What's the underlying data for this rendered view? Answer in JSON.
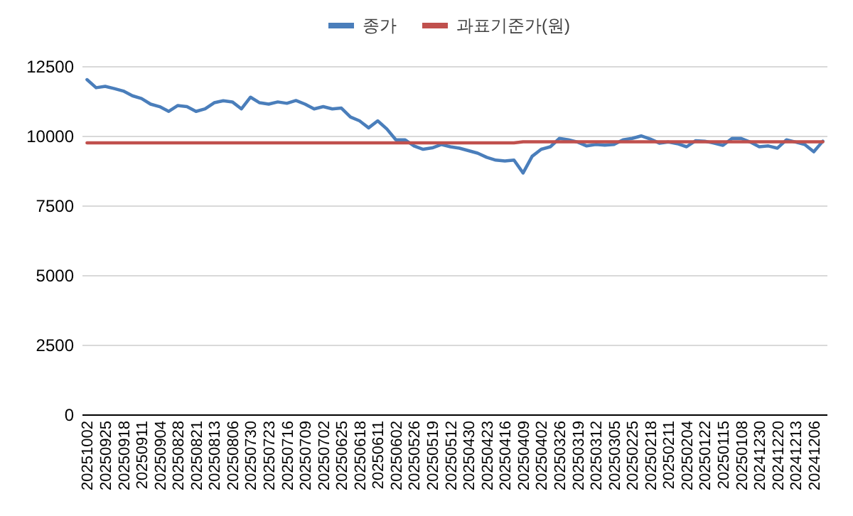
{
  "chart_data": {
    "type": "line",
    "categories": [
      "20251002",
      null,
      "20250925",
      null,
      "20250918",
      null,
      "20250911",
      null,
      "20250904",
      null,
      "20250828",
      null,
      "20250821",
      null,
      "20250813",
      null,
      "20250806",
      null,
      "20250730",
      null,
      "20250723",
      null,
      "20250716",
      null,
      "20250709",
      null,
      "20250702",
      null,
      "20250625",
      null,
      "20250618",
      null,
      "20250611",
      null,
      "20250602",
      null,
      "20250526",
      null,
      "20250519",
      null,
      "20250512",
      null,
      "20250430",
      null,
      "20250423",
      null,
      "20250416",
      null,
      "20250409",
      null,
      "20250402",
      null,
      "20250326",
      null,
      "20250319",
      null,
      "20250312",
      null,
      "20250305",
      null,
      "20250225",
      null,
      "20250218",
      null,
      "20250211",
      null,
      "20250204",
      null,
      "20250122",
      null,
      "20250115",
      null,
      "20250108",
      null,
      "20241230",
      null,
      "20241220",
      null,
      "20241213",
      null,
      "20241206",
      null
    ],
    "series": [
      {
        "name": "종가",
        "color": "#4a7ebb",
        "values": [
          12040,
          11750,
          11800,
          11720,
          11630,
          11460,
          11360,
          11160,
          11070,
          10900,
          11110,
          11070,
          10900,
          10990,
          11210,
          11280,
          11240,
          10990,
          11410,
          11210,
          11160,
          11240,
          11190,
          11290,
          11160,
          10990,
          11070,
          10990,
          11020,
          10700,
          10560,
          10310,
          10560,
          10270,
          9880,
          9880,
          9660,
          9540,
          9590,
          9710,
          9630,
          9580,
          9490,
          9400,
          9250,
          9150,
          9120,
          9150,
          8690,
          9290,
          9540,
          9630,
          9930,
          9880,
          9800,
          9660,
          9710,
          9690,
          9710,
          9880,
          9930,
          10020,
          9910,
          9760,
          9800,
          9740,
          9630,
          9850,
          9830,
          9760,
          9680,
          9930,
          9930,
          9800,
          9630,
          9660,
          9580,
          9880,
          9800,
          9710,
          9450,
          9830
        ]
      },
      {
        "name": "과표기준가(원)",
        "color": "#c0504d",
        "values": [
          9770,
          9770,
          9770,
          9770,
          9770,
          9770,
          9770,
          9770,
          9770,
          9770,
          9770,
          9770,
          9770,
          9770,
          9770,
          9770,
          9770,
          9770,
          9770,
          9770,
          9770,
          9770,
          9770,
          9770,
          9770,
          9770,
          9770,
          9770,
          9770,
          9770,
          9770,
          9770,
          9770,
          9770,
          9770,
          9770,
          9770,
          9770,
          9770,
          9770,
          9770,
          9770,
          9770,
          9770,
          9770,
          9770,
          9770,
          9770,
          9810,
          9810,
          9810,
          9810,
          9810,
          9810,
          9810,
          9810,
          9810,
          9810,
          9810,
          9810,
          9810,
          9810,
          9810,
          9810,
          9810,
          9810,
          9810,
          9810,
          9810,
          9810,
          9810,
          9810,
          9810,
          9810,
          9810,
          9810,
          9810,
          9810,
          9810,
          9810,
          9810,
          9810
        ]
      }
    ],
    "ylim": [
      0,
      12500
    ],
    "yticks": [
      0,
      2500,
      5000,
      7500,
      10000,
      12500
    ],
    "grid": "y",
    "legend": "top"
  }
}
